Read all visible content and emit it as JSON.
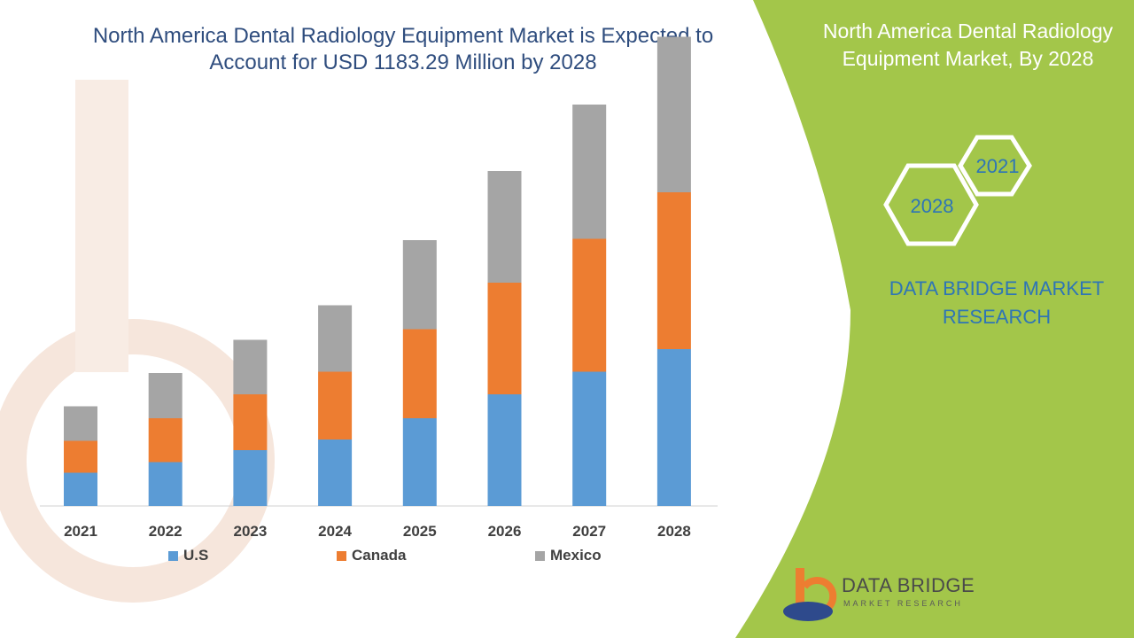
{
  "title": "North America Dental Radiology Equipment Market is Expected to Account for USD 1183.29 Million by 2028",
  "panel": {
    "title": "North America Dental Radiology Equipment Market, By 2028",
    "hex_top": "2021",
    "hex_bottom": "2028",
    "brand": "DATA BRIDGE MARKET RESEARCH"
  },
  "logo": {
    "name": "DATA BRIDGE",
    "tagline": "MARKET RESEARCH"
  },
  "colors": {
    "panel_green": "#a3c64a",
    "title_blue": "#2f4d7e",
    "brand_blue": "#2e75b6"
  },
  "chart_data": {
    "type": "bar",
    "stacked": true,
    "categories": [
      "2021",
      "2022",
      "2023",
      "2024",
      "2025",
      "2026",
      "2027",
      "2028"
    ],
    "series": [
      {
        "name": "U.S",
        "color": "#5b9bd5",
        "values": [
          25,
          33,
          42,
          50,
          66,
          84,
          101,
          118
        ]
      },
      {
        "name": "Canada",
        "color": "#ed7d31",
        "values": [
          24,
          33,
          42,
          51,
          67,
          84,
          100,
          118
        ]
      },
      {
        "name": "Mexico",
        "color": "#a5a5a5",
        "values": [
          26,
          34,
          41,
          50,
          67,
          84,
          101,
          117
        ]
      }
    ],
    "legend_position": "bottom",
    "grid": false,
    "ylim": [
      0,
      360
    ]
  }
}
